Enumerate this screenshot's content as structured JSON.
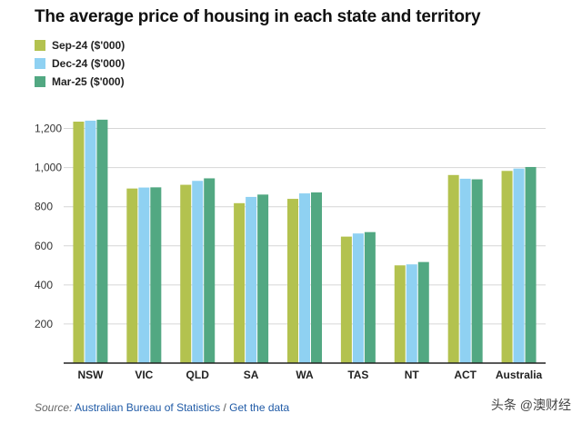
{
  "title": "The average price of housing in each state and territory",
  "source": {
    "label": "Source:",
    "link": "Australian Bureau of Statistics",
    "separator": "/",
    "data_link": "Get the data"
  },
  "watermark": "头条 @澳财经",
  "colors": {
    "series": [
      "#b3c24f",
      "#8fd1f2",
      "#52a882"
    ],
    "grid": "#d6d6d6",
    "axis": "#222222"
  },
  "chart_data": {
    "type": "bar",
    "title": "The average price of housing in each state and territory",
    "xlabel": "",
    "ylabel": "",
    "categories": [
      "NSW",
      "VIC",
      "QLD",
      "SA",
      "WA",
      "TAS",
      "NT",
      "ACT",
      "Australia"
    ],
    "series": [
      {
        "name": "Sep-24 ($'000)",
        "values": [
          1235,
          893,
          912,
          818,
          840,
          647,
          500,
          962,
          983
        ]
      },
      {
        "name": "Dec-24 ($'000)",
        "values": [
          1240,
          898,
          932,
          850,
          868,
          663,
          505,
          943,
          995
        ]
      },
      {
        "name": "Mar-25 ($'000)",
        "values": [
          1245,
          899,
          945,
          862,
          873,
          670,
          517,
          940,
          1003
        ]
      }
    ],
    "ylim": [
      0,
      1300
    ],
    "yticks": [
      200,
      400,
      600,
      800,
      1000,
      1200
    ],
    "ytick_labels": [
      "200",
      "400",
      "600",
      "800",
      "1,000",
      "1,200"
    ],
    "grid": true,
    "legend": "top-left"
  }
}
